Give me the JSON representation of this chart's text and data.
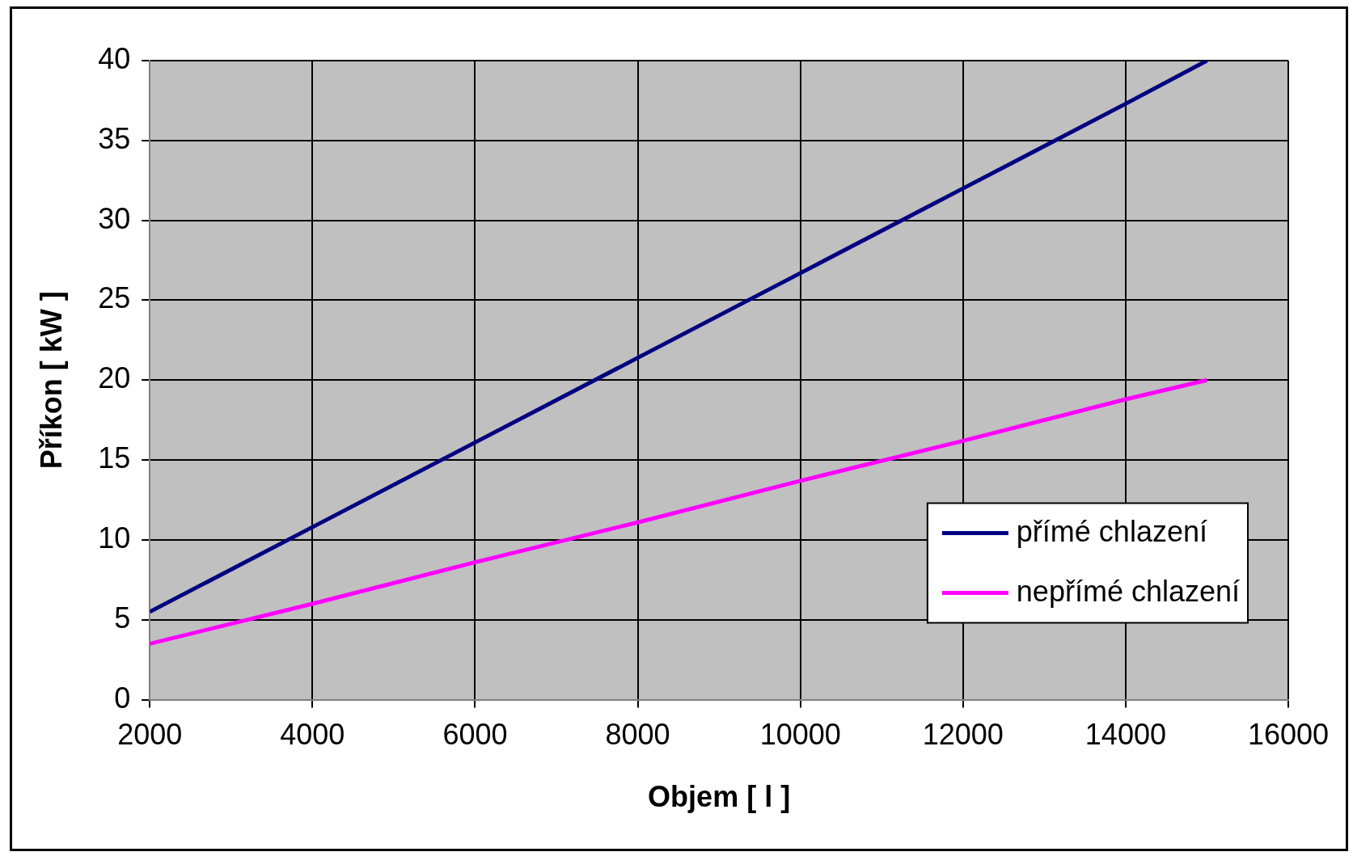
{
  "chart_data": {
    "type": "line",
    "xlabel": "Objem [ l ]",
    "ylabel": "Příkon [ kW ]",
    "x": [
      2000,
      4000,
      6000,
      8000,
      10000,
      12000,
      14000,
      15000
    ],
    "series": [
      {
        "name": "přímé chlazení",
        "color": "#000080",
        "values": [
          5.5,
          10.8,
          16.1,
          21.4,
          26.7,
          32,
          37.3,
          40
        ]
      },
      {
        "name": "nepřímé chlazení",
        "color": "#ff00ff",
        "values": [
          3.5,
          6.0,
          8.6,
          11.1,
          13.7,
          16.2,
          18.8,
          20
        ]
      }
    ],
    "xlim": [
      2000,
      16000
    ],
    "xticks": [
      2000,
      4000,
      6000,
      8000,
      10000,
      12000,
      14000,
      16000
    ],
    "ylim": [
      0,
      40
    ],
    "yticks": [
      0,
      5,
      10,
      15,
      20,
      25,
      30,
      35,
      40
    ],
    "grid": true,
    "legend": "bottom right",
    "marker": "none",
    "line_style": "solid"
  }
}
